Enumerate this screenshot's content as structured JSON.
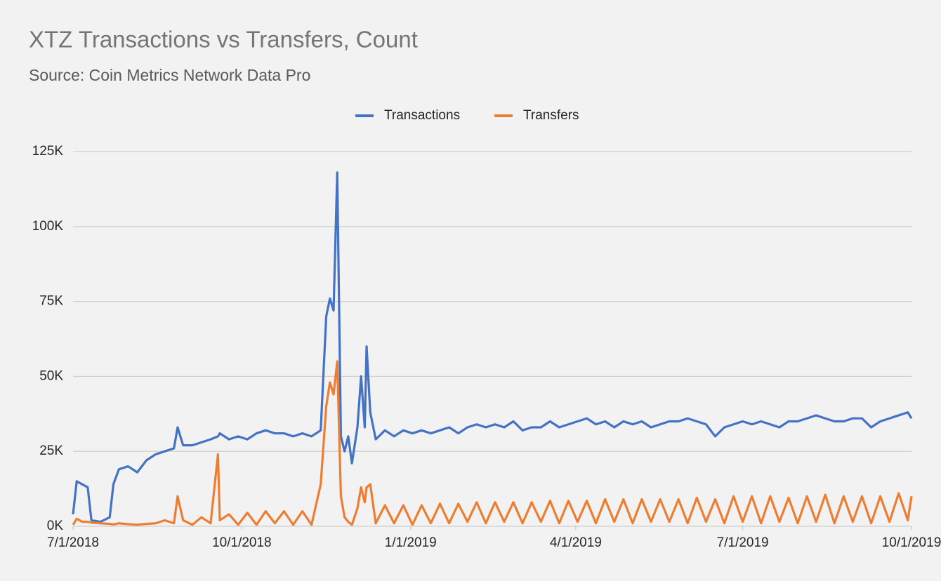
{
  "chart_data": {
    "type": "line",
    "title": "XTZ Transactions vs Transfers, Count",
    "subtitle": "Source: Coin Metrics Network Data Pro",
    "x": [
      "7/1/2018",
      "7/3/2018",
      "7/6/2018",
      "7/9/2018",
      "7/11/2018",
      "7/16/2018",
      "7/21/2018",
      "7/23/2018",
      "7/26/2018",
      "7/31/2018",
      "8/5/2018",
      "8/10/2018",
      "8/15/2018",
      "8/20/2018",
      "8/25/2018",
      "8/27/2018",
      "8/30/2018",
      "9/4/2018",
      "9/9/2018",
      "9/14/2018",
      "9/18/2018",
      "9/19/2018",
      "9/24/2018",
      "9/29/2018",
      "10/4/2018",
      "10/9/2018",
      "10/14/2018",
      "10/19/2018",
      "10/24/2018",
      "10/29/2018",
      "11/3/2018",
      "11/8/2018",
      "11/13/2018",
      "11/16/2018",
      "11/18/2018",
      "11/20/2018",
      "11/22/2018",
      "11/24/2018",
      "11/26/2018",
      "11/28/2018",
      "11/30/2018",
      "12/3/2018",
      "12/5/2018",
      "12/7/2018",
      "12/8/2018",
      "12/10/2018",
      "12/13/2018",
      "12/18/2018",
      "12/23/2018",
      "12/28/2018",
      "1/2/2019",
      "1/7/2019",
      "1/12/2019",
      "1/17/2019",
      "1/22/2019",
      "1/27/2019",
      "2/1/2019",
      "2/6/2019",
      "2/11/2019",
      "2/16/2019",
      "2/21/2019",
      "2/26/2019",
      "3/3/2019",
      "3/8/2019",
      "3/13/2019",
      "3/18/2019",
      "3/23/2019",
      "3/28/2019",
      "4/2/2019",
      "4/7/2019",
      "4/12/2019",
      "4/17/2019",
      "4/22/2019",
      "4/27/2019",
      "5/2/2019",
      "5/7/2019",
      "5/12/2019",
      "5/17/2019",
      "5/22/2019",
      "5/27/2019",
      "6/1/2019",
      "6/6/2019",
      "6/11/2019",
      "6/16/2019",
      "6/21/2019",
      "6/26/2019",
      "7/1/2019",
      "7/6/2019",
      "7/11/2019",
      "7/16/2019",
      "7/21/2019",
      "7/26/2019",
      "7/31/2019",
      "8/5/2019",
      "8/10/2019",
      "8/15/2019",
      "8/20/2019",
      "8/25/2019",
      "8/30/2019",
      "9/4/2019",
      "9/9/2019",
      "9/14/2019",
      "9/19/2019",
      "9/24/2019",
      "9/29/2019",
      "10/1/2019"
    ],
    "series": [
      {
        "name": "Transactions",
        "color": "#4472c4",
        "values": [
          4000,
          15000,
          14000,
          13000,
          2000,
          1500,
          3000,
          14000,
          19000,
          20000,
          18000,
          22000,
          24000,
          25000,
          26000,
          33000,
          27000,
          27000,
          28000,
          29000,
          30000,
          31000,
          29000,
          30000,
          29000,
          31000,
          32000,
          31000,
          31000,
          30000,
          31000,
          30000,
          32000,
          70000,
          76000,
          72000,
          118000,
          30000,
          25000,
          30000,
          21000,
          33000,
          50000,
          33000,
          60000,
          38000,
          29000,
          32000,
          30000,
          32000,
          31000,
          32000,
          31000,
          32000,
          33000,
          31000,
          33000,
          34000,
          33000,
          34000,
          33000,
          35000,
          32000,
          33000,
          33000,
          35000,
          33000,
          34000,
          35000,
          36000,
          34000,
          35000,
          33000,
          35000,
          34000,
          35000,
          33000,
          34000,
          35000,
          35000,
          36000,
          35000,
          34000,
          30000,
          33000,
          34000,
          35000,
          34000,
          35000,
          34000,
          33000,
          35000,
          35000,
          36000,
          37000,
          36000,
          35000,
          35000,
          36000,
          36000,
          33000,
          35000,
          36000,
          37000,
          38000,
          36000
        ]
      },
      {
        "name": "Transfers",
        "color": "#ed7d31",
        "values": [
          500,
          2500,
          1500,
          1500,
          1200,
          1000,
          800,
          600,
          1000,
          700,
          500,
          800,
          1000,
          2000,
          1000,
          10000,
          2000,
          500,
          3000,
          1000,
          24000,
          2000,
          4000,
          500,
          4500,
          500,
          5000,
          1000,
          5000,
          500,
          5000,
          500,
          14000,
          40000,
          48000,
          44000,
          55000,
          10000,
          3000,
          1500,
          500,
          6000,
          13000,
          8000,
          13000,
          14000,
          1000,
          7000,
          1000,
          7000,
          500,
          7000,
          1000,
          7500,
          1000,
          7500,
          1500,
          8000,
          1000,
          8000,
          1500,
          8000,
          1000,
          8000,
          1500,
          8500,
          1000,
          8500,
          1500,
          8500,
          1000,
          9000,
          1500,
          9000,
          1000,
          9000,
          1500,
          9000,
          1500,
          9000,
          1000,
          9500,
          1500,
          9000,
          1000,
          10000,
          1500,
          10000,
          1000,
          10000,
          1500,
          9500,
          1000,
          10000,
          1500,
          10500,
          1000,
          10000,
          1500,
          10000,
          1000,
          10000,
          1500,
          11000,
          2000,
          10000
        ]
      }
    ],
    "xlim": [
      "7/1/2018",
      "10/1/2019"
    ],
    "xticks": [
      "7/1/2018",
      "10/1/2018",
      "1/1/2019",
      "4/1/2019",
      "7/1/2019",
      "10/1/2019"
    ],
    "ylim": [
      0,
      125000
    ],
    "yticks": [
      {
        "value": 0,
        "label": "0K"
      },
      {
        "value": 25000,
        "label": "25K"
      },
      {
        "value": 50000,
        "label": "50K"
      },
      {
        "value": 75000,
        "label": "75K"
      },
      {
        "value": 100000,
        "label": "100K"
      },
      {
        "value": 125000,
        "label": "125K"
      }
    ],
    "grid": true,
    "legend": "top"
  }
}
